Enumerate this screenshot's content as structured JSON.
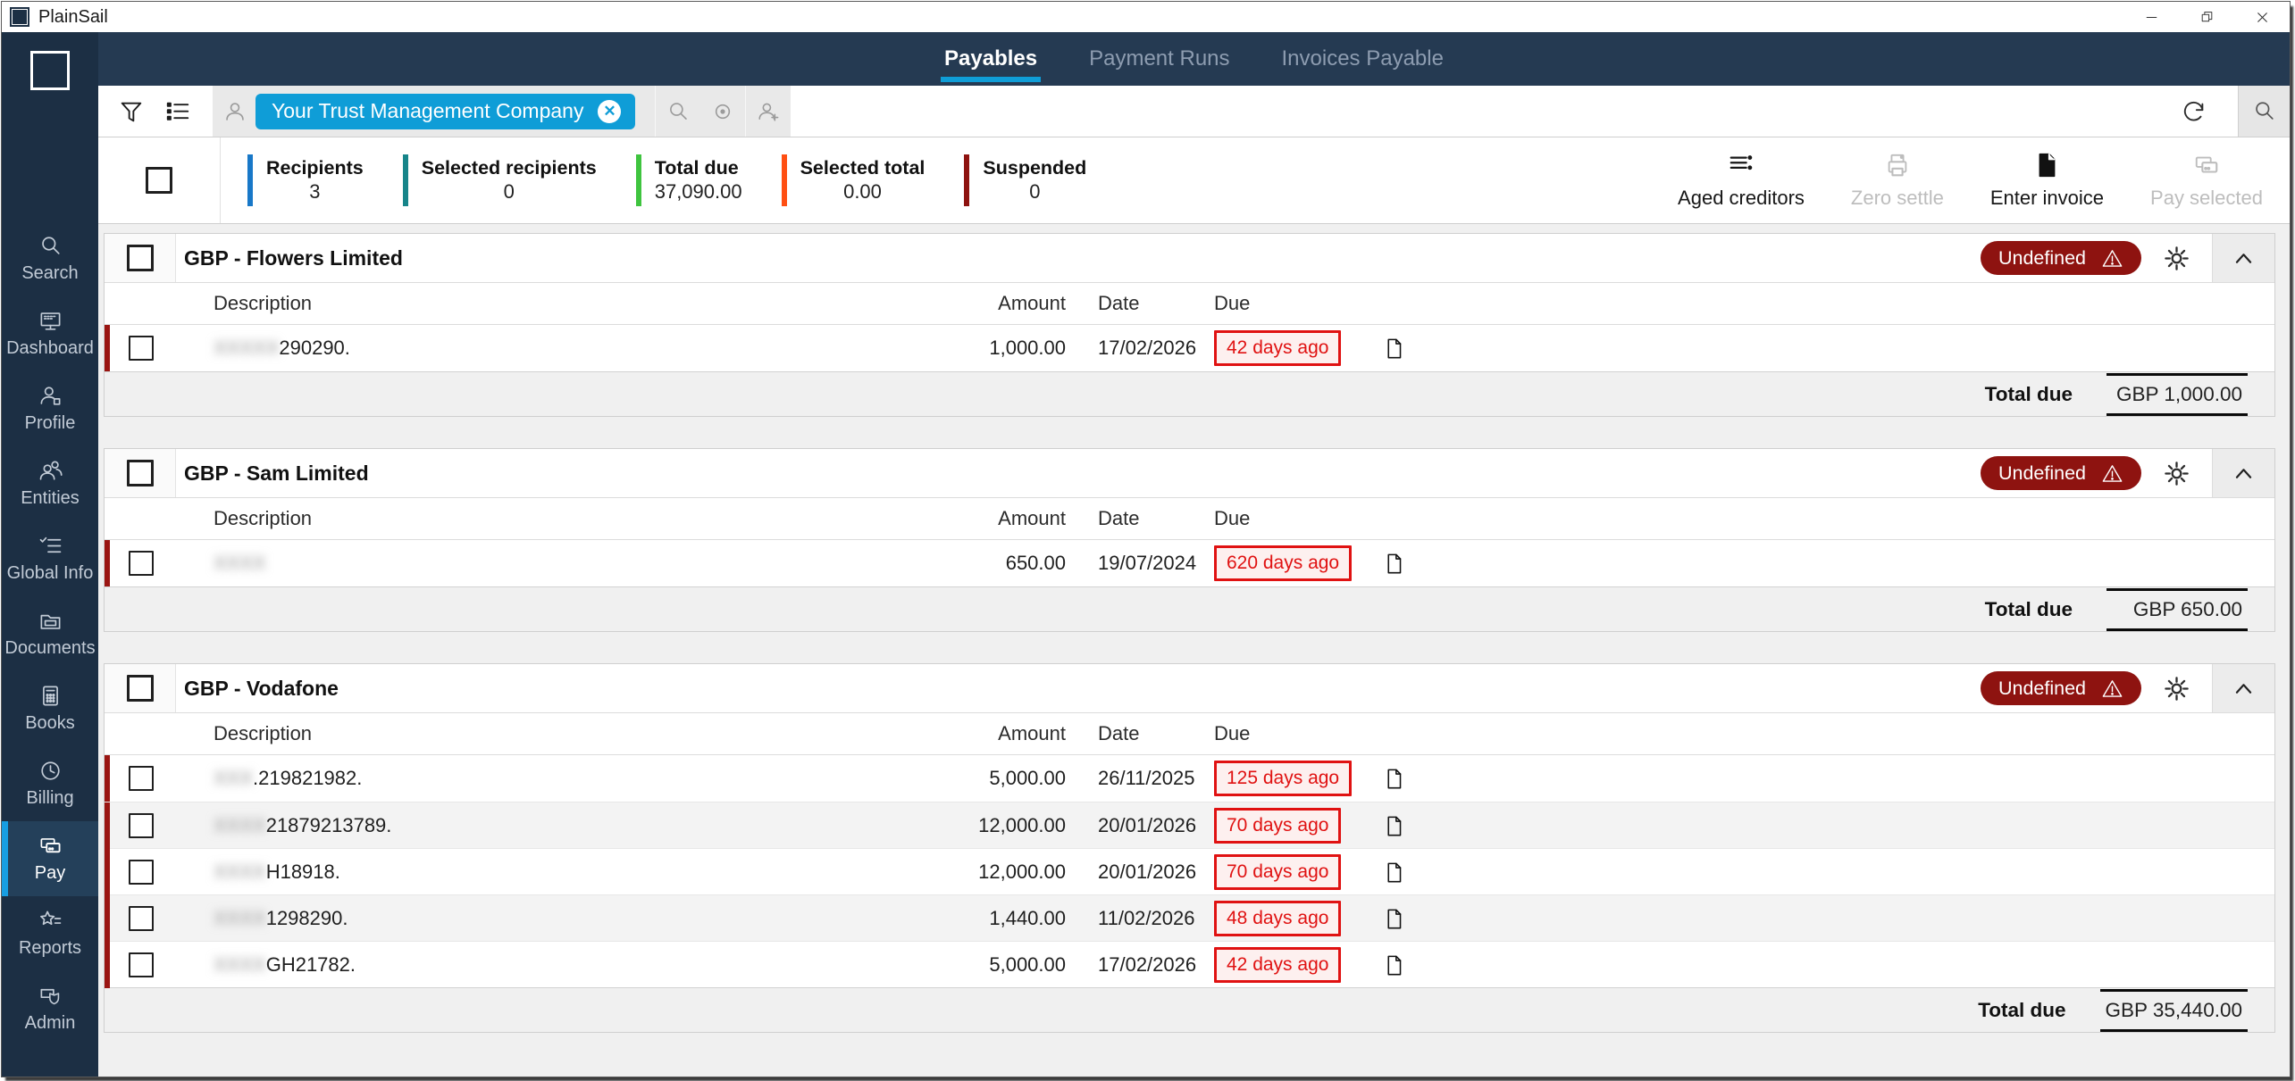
{
  "window": {
    "title": "PlainSail",
    "controls": [
      "minimize",
      "restore",
      "close"
    ]
  },
  "nav_tabs": [
    {
      "label": "Payables",
      "active": true
    },
    {
      "label": "Payment Runs",
      "active": false
    },
    {
      "label": "Invoices Payable",
      "active": false
    }
  ],
  "filter_bar": {
    "selected_filter_chip": "Your Trust Management Company"
  },
  "summary": {
    "stats": [
      {
        "label": "Recipients",
        "value": "3",
        "color": "#1878c8"
      },
      {
        "label": "Selected recipients",
        "value": "0",
        "color": "#17858a"
      },
      {
        "label": "Total due",
        "value": "37,090.00",
        "color": "#3fc43f"
      },
      {
        "label": "Selected total",
        "value": "0.00",
        "color": "#ff4f12"
      },
      {
        "label": "Suspended",
        "value": "0",
        "color": "#8e1310"
      }
    ]
  },
  "actions": [
    {
      "label": "Aged creditors",
      "icon": "aged-creditors-icon",
      "enabled": true
    },
    {
      "label": "Zero settle",
      "icon": "zero-settle-icon",
      "enabled": false
    },
    {
      "label": "Enter invoice",
      "icon": "enter-invoice-icon",
      "enabled": true
    },
    {
      "label": "Pay selected",
      "icon": "pay-selected-icon",
      "enabled": false
    }
  ],
  "sidebar": {
    "items": [
      {
        "label": "Search",
        "icon": "search-icon",
        "active": false
      },
      {
        "label": "Dashboard",
        "icon": "dashboard-icon",
        "active": false
      },
      {
        "label": "Profile",
        "icon": "profile-icon",
        "active": false
      },
      {
        "label": "Entities",
        "icon": "entities-icon",
        "active": false
      },
      {
        "label": "Global Info",
        "icon": "global-info-icon",
        "active": false
      },
      {
        "label": "Documents",
        "icon": "documents-icon",
        "active": false
      },
      {
        "label": "Books",
        "icon": "books-icon",
        "active": false
      },
      {
        "label": "Billing",
        "icon": "billing-icon",
        "active": false
      },
      {
        "label": "Pay",
        "icon": "pay-icon",
        "active": true
      },
      {
        "label": "Reports",
        "icon": "reports-icon",
        "active": false
      },
      {
        "label": "Admin",
        "icon": "admin-icon",
        "active": false
      }
    ]
  },
  "payables": {
    "columns": [
      "Description",
      "Amount",
      "Date",
      "Due"
    ],
    "total_label": "Total due",
    "groups": [
      {
        "title": "GBP - Flowers Limited",
        "status": "Undefined",
        "total": "GBP 1,000.00",
        "rows": [
          {
            "desc_redacted": "XXXXX",
            "desc": "290290.",
            "amount": "1,000.00",
            "date": "17/02/2026",
            "due": "42 days ago"
          }
        ]
      },
      {
        "title": "GBP - Sam Limited",
        "status": "Undefined",
        "total": "GBP 650.00",
        "rows": [
          {
            "desc_redacted": "XXXX",
            "desc": "",
            "amount": "650.00",
            "date": "19/07/2024",
            "due": "620 days ago"
          }
        ]
      },
      {
        "title": "GBP - Vodafone",
        "status": "Undefined",
        "total": "GBP 35,440.00",
        "rows": [
          {
            "desc_redacted": "XXX",
            "desc": ".219821982.",
            "amount": "5,000.00",
            "date": "26/11/2025",
            "due": "125 days ago"
          },
          {
            "desc_redacted": "XXXX",
            "desc": "21879213789.",
            "amount": "12,000.00",
            "date": "20/01/2026",
            "due": "70 days ago"
          },
          {
            "desc_redacted": "XXXX",
            "desc": "H18918.",
            "amount": "12,000.00",
            "date": "20/01/2026",
            "due": "70 days ago"
          },
          {
            "desc_redacted": "XXXX",
            "desc": "1298290.",
            "amount": "1,440.00",
            "date": "11/02/2026",
            "due": "48 days ago"
          },
          {
            "desc_redacted": "XXXX",
            "desc": "GH21782.",
            "amount": "5,000.00",
            "date": "17/02/2026",
            "due": "42 days ago"
          }
        ]
      }
    ]
  }
}
